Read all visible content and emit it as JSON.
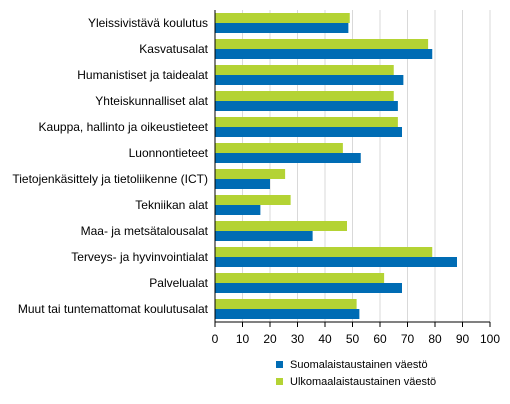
{
  "chart_data": {
    "type": "bar",
    "orientation": "horizontal",
    "categories": [
      "Yleissivistävä koulutus",
      "Kasvatusalat",
      "Humanistiset ja taidealat",
      "Yhteiskunnalliset alat",
      "Kauppa, hallinto ja oikeustieteet",
      "Luonnontieteet",
      "Tietojenkäsittely ja tietoliikenne (ICT)",
      "Tekniikan alat",
      "Maa- ja metsätalousalat",
      "Terveys- ja hyvinvointialat",
      "Palvelualat",
      "Muut tai tuntemattomat koulutusalat"
    ],
    "series": [
      {
        "name": "Suomalaistaustainen väestö",
        "color": "#006cb4",
        "values": [
          48.5,
          79,
          68.5,
          66.5,
          68,
          53,
          20,
          16.5,
          35.5,
          88,
          68,
          52.5
        ]
      },
      {
        "name": "Ulkomaalaistaustainen väestö",
        "color": "#b4d334",
        "values": [
          49,
          77.5,
          65,
          65,
          66.5,
          46.5,
          25.5,
          27.5,
          48,
          79,
          61.5,
          51.5
        ]
      }
    ],
    "xlim": [
      0,
      100
    ],
    "xticks": [
      "0",
      "10",
      "20",
      "30",
      "40",
      "50",
      "60",
      "70",
      "80",
      "90",
      "100"
    ],
    "grid": "vertical",
    "legend": "bottom-right"
  }
}
